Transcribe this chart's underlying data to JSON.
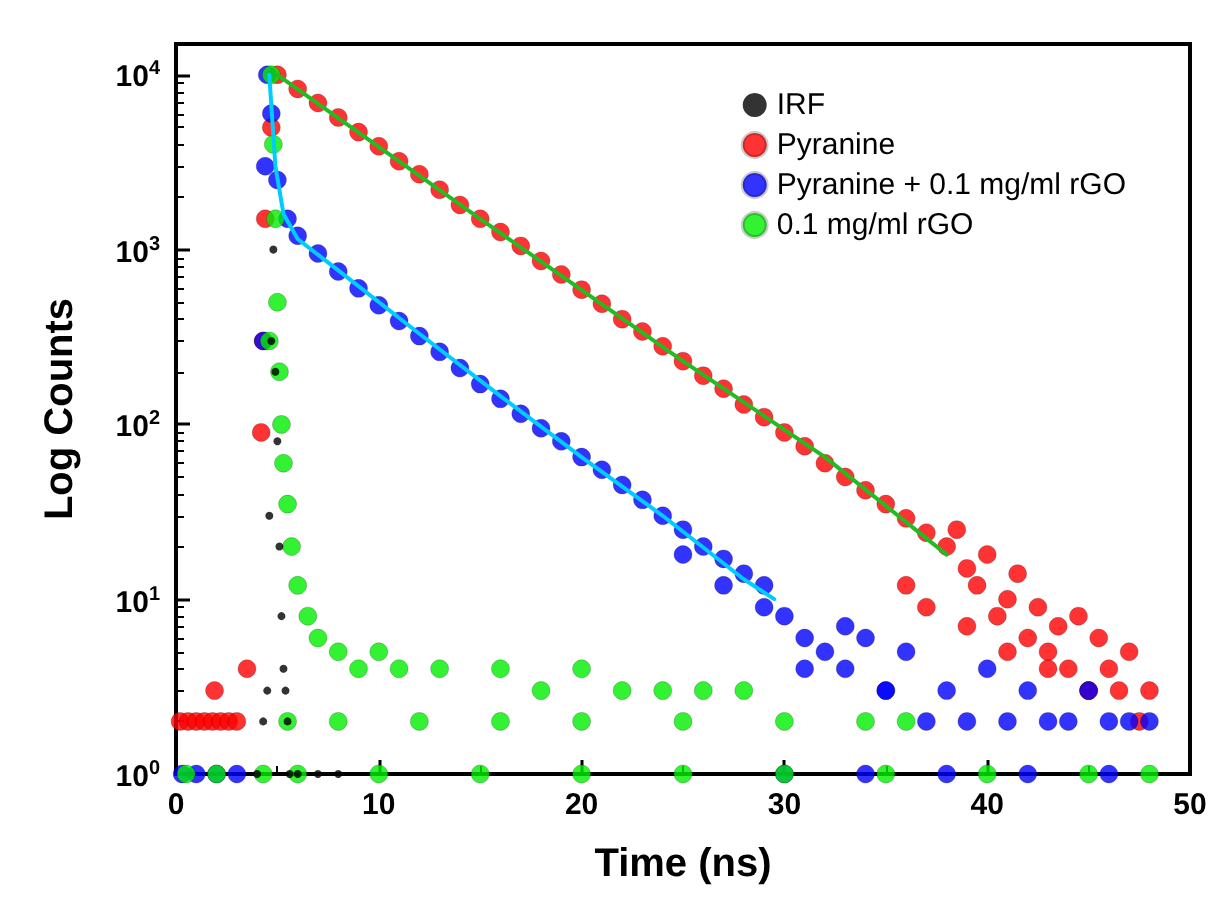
{
  "chart_data": {
    "type": "scatter",
    "xlabel": "Time (ns)",
    "ylabel": "Log Counts",
    "xlim": [
      0,
      50
    ],
    "xticks": [
      0,
      10,
      20,
      30,
      40,
      50
    ],
    "ylim": [
      1,
      15000
    ],
    "yticks": [
      {
        "value": 1,
        "label": "10$^{0}$"
      },
      {
        "value": 10,
        "label": "10$^{1}$"
      },
      {
        "value": 100,
        "label": "10$^{2}$"
      },
      {
        "value": 1000,
        "label": "10$^{3}$"
      },
      {
        "value": 10000,
        "label": "10$^{4}$"
      }
    ],
    "log": "y",
    "grid": false,
    "legend": "top right",
    "marker": "circle",
    "series": [
      {
        "name": "IRF",
        "color": "#000000",
        "x": [
          4.0,
          4.3,
          4.5,
          4.6,
          4.7,
          4.8,
          4.9,
          5.0,
          5.1,
          5.2,
          5.3,
          5.4,
          5.5,
          5.6,
          6,
          7,
          8
        ],
        "values": [
          1,
          2,
          3,
          30,
          300,
          1000,
          200,
          80,
          20,
          8,
          4,
          3,
          2,
          1,
          1,
          1,
          1
        ]
      },
      {
        "name": "Pyranine",
        "color": "#ff0000",
        "x": [
          0.2,
          0.6,
          1.0,
          1.4,
          1.8,
          2.2,
          2.6,
          3.0,
          1.9,
          3.5,
          4.2,
          4.3,
          4.4,
          4.7,
          5,
          6,
          7,
          8,
          9,
          10,
          11,
          12,
          13,
          14,
          15,
          16,
          17,
          18,
          19,
          20,
          21,
          22,
          23,
          24,
          25,
          26,
          27,
          28,
          29,
          30,
          31,
          32,
          33,
          34,
          35,
          36,
          37,
          38,
          38.5,
          39,
          39.5,
          40,
          40.5,
          41,
          41.5,
          42,
          42.5,
          43,
          43.5,
          44,
          44.5,
          45,
          45.5,
          46,
          46.5,
          47,
          47.5,
          48,
          36,
          37,
          39,
          41,
          43,
          45
        ],
        "values": [
          2,
          2,
          2,
          2,
          2,
          2,
          2,
          2,
          3,
          4,
          90,
          300,
          1500,
          5000,
          10000,
          8300,
          6900,
          5700,
          4700,
          3900,
          3200,
          2700,
          2200,
          1800,
          1500,
          1260,
          1050,
          860,
          720,
          590,
          490,
          400,
          340,
          280,
          230,
          190,
          160,
          130,
          110,
          90,
          75,
          60,
          50,
          42,
          35,
          29,
          24,
          20,
          25,
          15,
          12,
          18,
          8,
          10,
          14,
          6,
          9,
          5,
          7,
          4,
          8,
          3,
          6,
          4,
          3,
          5,
          2,
          3,
          12,
          9,
          7,
          5,
          4,
          3
        ]
      },
      {
        "name": "Pyranine + 0.1 mg/ml rGO",
        "color": "#0000ff",
        "x": [
          0.3,
          1,
          2,
          3,
          4.3,
          4.4,
          4.5,
          4.7,
          5.0,
          5.5,
          6,
          7,
          8,
          9,
          10,
          11,
          12,
          13,
          14,
          15,
          16,
          17,
          18,
          19,
          20,
          21,
          22,
          23,
          24,
          25,
          26,
          27,
          28,
          29,
          30,
          31,
          32,
          33,
          34,
          35,
          36,
          37,
          38,
          39,
          40,
          41,
          42,
          43,
          44,
          45,
          46,
          47,
          48,
          25,
          27,
          29,
          31,
          33,
          35,
          30,
          34,
          38,
          42,
          46
        ],
        "values": [
          1,
          1,
          1,
          1,
          300,
          3000,
          10000,
          6000,
          2500,
          1500,
          1200,
          950,
          750,
          600,
          480,
          390,
          320,
          260,
          210,
          170,
          140,
          115,
          95,
          80,
          65,
          55,
          45,
          37,
          30,
          25,
          20,
          17,
          14,
          9,
          8,
          6,
          5,
          4,
          6,
          3,
          5,
          2,
          3,
          2,
          4,
          2,
          3,
          2,
          2,
          3,
          2,
          2,
          2,
          18,
          12,
          12,
          4,
          7,
          3,
          1,
          1,
          1,
          1,
          1
        ]
      },
      {
        "name": "0.1 mg/ml rGO",
        "color": "#00ee00",
        "x": [
          0.5,
          2,
          4.3,
          4.6,
          4.7,
          4.8,
          4.9,
          5.0,
          5.1,
          5.2,
          5.3,
          5.5,
          5.7,
          6,
          6.5,
          7,
          8,
          9,
          10,
          11,
          13,
          16,
          18,
          20,
          22,
          24,
          26,
          28,
          5.5,
          8,
          12,
          16,
          20,
          25,
          30,
          34,
          36,
          6,
          10,
          15,
          20,
          25,
          30,
          35,
          40,
          45,
          48
        ],
        "values": [
          1,
          1,
          1,
          300,
          10000,
          4000,
          1500,
          500,
          200,
          100,
          60,
          35,
          20,
          12,
          8,
          6,
          5,
          4,
          5,
          4,
          4,
          4,
          3,
          4,
          3,
          3,
          3,
          3,
          2,
          2,
          2,
          2,
          2,
          2,
          2,
          2,
          2,
          1,
          1,
          1,
          1,
          1,
          1,
          1,
          1,
          1,
          1
        ]
      },
      {
        "type": "line",
        "color": "#22bb22",
        "marker": "none",
        "x": [
          5,
          15,
          25,
          32,
          38
        ],
        "values": [
          10000,
          1500,
          230,
          65,
          18
        ]
      },
      {
        "type": "line",
        "color": "#00ccff",
        "marker": "none",
        "x": [
          4.6,
          4.9,
          5.3,
          6,
          8,
          12,
          16,
          20,
          24,
          28,
          29.5
        ],
        "values": [
          10000,
          3000,
          1600,
          1150,
          760,
          330,
          145,
          65,
          30,
          13,
          10
        ]
      }
    ]
  }
}
